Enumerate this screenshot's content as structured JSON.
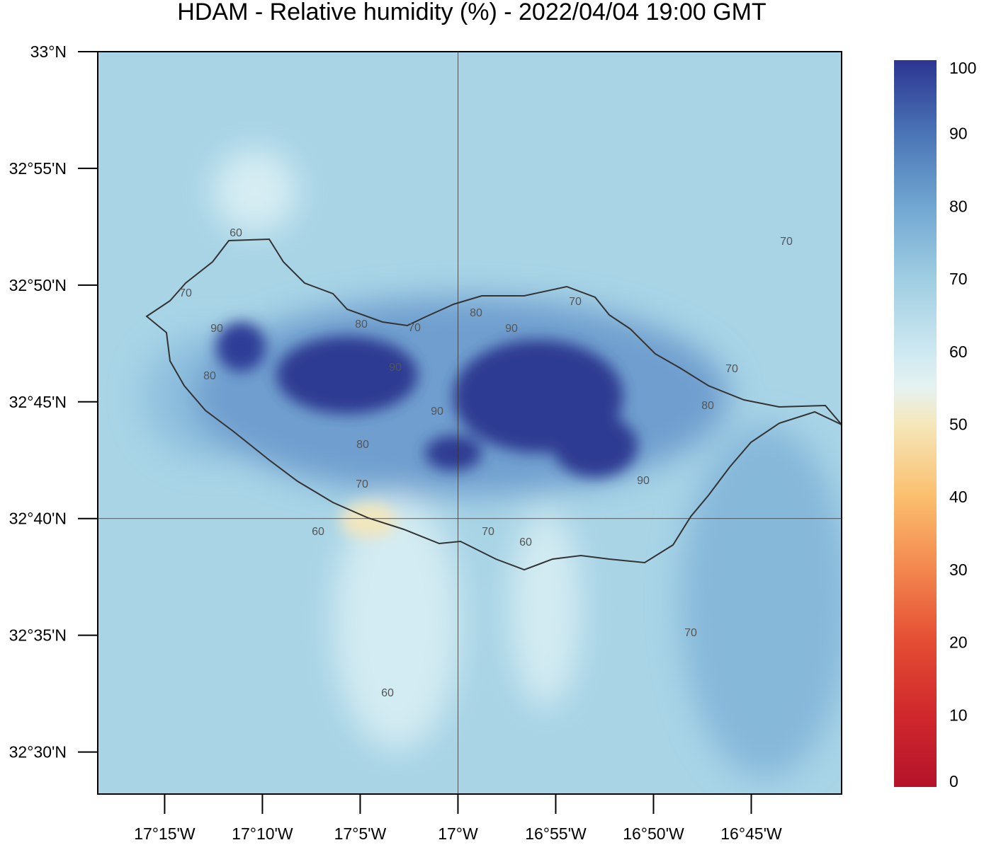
{
  "map": {
    "title": "HDAM - Relative humidity (%)  -  2022/04/04  19:00 GMT",
    "lat_ticks": [
      {
        "value": 33.0,
        "label": "33°N"
      },
      {
        "value": 32.916667,
        "label": "32°55'N"
      },
      {
        "value": 32.833333,
        "label": "32°50'N"
      },
      {
        "value": 32.75,
        "label": "32°45'N"
      },
      {
        "value": 32.666667,
        "label": "32°40'N"
      },
      {
        "value": 32.583333,
        "label": "32°35'N"
      },
      {
        "value": 32.5,
        "label": "32°30'N"
      }
    ],
    "lon_ticks": [
      {
        "value": -17.25,
        "label": "17°15'W"
      },
      {
        "value": -17.166667,
        "label": "17°10'W"
      },
      {
        "value": -17.083333,
        "label": "17°5'W"
      },
      {
        "value": -17.0,
        "label": "17°W"
      },
      {
        "value": -16.916667,
        "label": "16°55'W"
      },
      {
        "value": -16.833333,
        "label": "16°50'W"
      },
      {
        "value": -16.75,
        "label": "16°45'W"
      }
    ],
    "latlim": [
      32.47,
      33.0
    ],
    "lonlim": [
      -17.307,
      -16.673
    ],
    "colorbar": {
      "range": [
        0,
        100
      ],
      "ticks": [
        0,
        10,
        20,
        30,
        40,
        50,
        60,
        70,
        80,
        90,
        100
      ]
    },
    "contour_labels": [
      "60",
      "70",
      "90",
      "80",
      "80",
      "70",
      "90",
      "80",
      "90",
      "70",
      "70",
      "70",
      "80",
      "90",
      "80",
      "70",
      "60",
      "70",
      "60",
      "90",
      "70",
      "60"
    ]
  }
}
